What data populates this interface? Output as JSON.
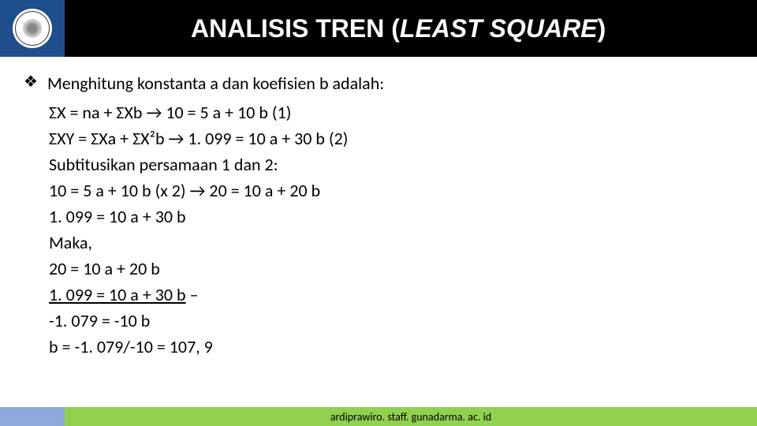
{
  "header": {
    "title_plain": "ANALISIS TREN (",
    "title_italic": "LEAST SQUARE",
    "title_close": ")"
  },
  "content": {
    "lead": "Menghitung konstanta a dan koefisien b adalah:",
    "lines": [
      "ΣX = na + ΣXb → 10 = 5 a + 10 b (1)",
      "ΣXY = ΣXa + ΣX²b → 1. 099 = 10 a + 30 b (2)",
      "Subtitusikan persamaan 1 dan 2:",
      "10 = 5 a + 10 b (x 2) → 20 = 10 a + 20 b",
      "1. 099 = 10 a + 30 b",
      "Maka,",
      "20 = 10 a + 20 b"
    ],
    "underline_line": "1. 099 = 10 a + 30 b",
    "underline_suffix": " –",
    "after_lines": [
      "-1. 079 = -10 b",
      "b = -1. 079/-10 = 107, 9"
    ]
  },
  "footer": {
    "url": "ardiprawiro. staff. gunadarma. ac. id"
  },
  "colors": {
    "logo_bg": "#1e4e8c",
    "title_bg": "#000000",
    "footer_blue": "#8faadc",
    "footer_green": "#92d050"
  }
}
